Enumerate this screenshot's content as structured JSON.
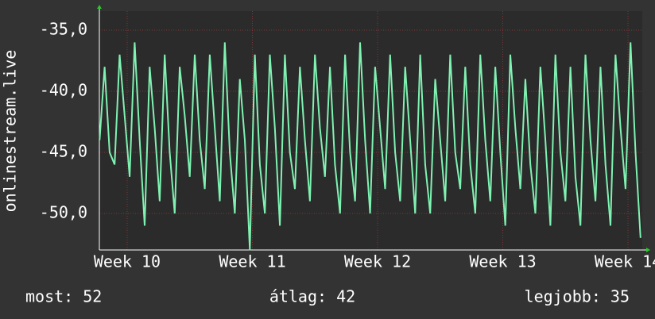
{
  "chart_data": {
    "type": "line",
    "y_label": "onlinestream.live",
    "x": [
      9.78,
      9.82,
      9.86,
      9.9,
      9.94,
      9.98,
      10.02,
      10.06,
      10.1,
      10.14,
      10.18,
      10.22,
      10.26,
      10.3,
      10.34,
      10.38,
      10.42,
      10.46,
      10.5,
      10.54,
      10.58,
      10.62,
      10.66,
      10.7,
      10.74,
      10.78,
      10.82,
      10.86,
      10.9,
      10.94,
      10.98,
      11.02,
      11.06,
      11.1,
      11.14,
      11.18,
      11.22,
      11.26,
      11.3,
      11.34,
      11.38,
      11.42,
      11.46,
      11.5,
      11.54,
      11.58,
      11.62,
      11.66,
      11.7,
      11.74,
      11.78,
      11.82,
      11.86,
      11.9,
      11.94,
      11.98,
      12.02,
      12.06,
      12.1,
      12.14,
      12.18,
      12.22,
      12.26,
      12.3,
      12.34,
      12.38,
      12.42,
      12.46,
      12.5,
      12.54,
      12.58,
      12.62,
      12.66,
      12.7,
      12.74,
      12.78,
      12.82,
      12.86,
      12.9,
      12.94,
      12.98,
      13.02,
      13.06,
      13.1,
      13.14,
      13.18,
      13.22,
      13.26,
      13.3,
      13.34,
      13.38,
      13.42,
      13.46,
      13.5,
      13.54,
      13.58,
      13.62,
      13.66,
      13.7,
      13.74,
      13.78,
      13.82,
      13.86,
      13.9,
      13.94,
      13.98,
      14.02,
      14.06,
      14.1
    ],
    "series": [
      {
        "color": "#7ff2b2",
        "values": [
          -44,
          -38,
          -45,
          -46,
          -37,
          -42,
          -47,
          -36,
          -44,
          -51,
          -38,
          -43,
          -49,
          -37,
          -45,
          -50,
          -38,
          -42,
          -47,
          -37,
          -44,
          -48,
          -37,
          -43,
          -49,
          -36,
          -45,
          -50,
          -39,
          -44,
          -53,
          -37,
          -46,
          -50,
          -37,
          -43,
          -51,
          -37,
          -45,
          -48,
          -38,
          -44,
          -49,
          -37,
          -43,
          -47,
          -38,
          -46,
          -50,
          -37,
          -45,
          -49,
          -36,
          -44,
          -50,
          -38,
          -43,
          -48,
          -37,
          -45,
          -49,
          -38,
          -44,
          -50,
          -37,
          -46,
          -50,
          -39,
          -44,
          -49,
          -37,
          -45,
          -48,
          -38,
          -46,
          -50,
          -37,
          -44,
          -49,
          -38,
          -45,
          -51,
          -37,
          -43,
          -48,
          -39,
          -46,
          -50,
          -38,
          -44,
          -51,
          -37,
          -45,
          -49,
          -38,
          -47,
          -51,
          -37,
          -44,
          -49,
          -38,
          -46,
          -51,
          -37,
          -43,
          -48,
          -36,
          -45,
          -52
        ]
      }
    ],
    "xlim": [
      9.778,
      14.114
    ],
    "xticks": [
      {
        "value": 10,
        "label": "Week 10"
      },
      {
        "value": 11,
        "label": "Week 11"
      },
      {
        "value": 12,
        "label": "Week 12"
      },
      {
        "value": 13,
        "label": "Week 13"
      },
      {
        "value": 14,
        "label": "Week 14"
      }
    ],
    "ylim": [
      -52.99,
      -33.44
    ],
    "yticks": [
      {
        "value": -35,
        "label": "-35,0"
      },
      {
        "value": -40,
        "label": "-40,0"
      },
      {
        "value": -45,
        "label": "-45,0"
      },
      {
        "value": -50,
        "label": "-50,0"
      }
    ],
    "grid": true,
    "footer": [
      "most: 52",
      "átlag: 42",
      "legjobb: 35"
    ]
  }
}
